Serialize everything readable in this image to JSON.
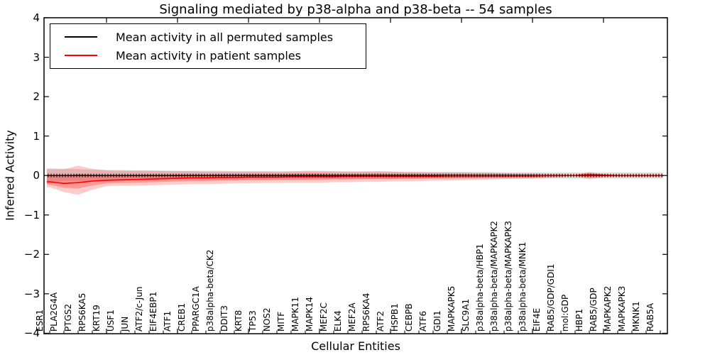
{
  "title": "Signaling mediated by p38-alpha and p38-beta -- 54 samples",
  "axes": {
    "xlabel": "Cellular Entities",
    "ylabel": "Inferred Activity",
    "ytick_labels": [
      "4",
      "3",
      "2",
      "1",
      "0",
      "−1",
      "−2",
      "−3",
      "−4"
    ],
    "ytick_values": [
      4,
      3,
      2,
      1,
      0,
      -1,
      -2,
      -3,
      -4
    ]
  },
  "legend": {
    "items": [
      {
        "label": "Mean activity in all permuted samples",
        "color": "#000000"
      },
      {
        "label": "Mean activity in patient samples",
        "color": "#ff0000"
      }
    ]
  },
  "chart_data": {
    "type": "line",
    "title": "Signaling mediated by p38-alpha and p38-beta -- 54 samples",
    "xlabel": "Cellular Entities",
    "ylabel": "Inferred Activity",
    "ylim": [
      -4,
      4
    ],
    "grid": false,
    "legend_position": "upper left",
    "categories": [
      "ESR1",
      "PLA2G4A",
      "PTGS2",
      "RPS6KA5",
      "KRT19",
      "USF1",
      "JUN",
      "ATF2/c-Jun",
      "EIF4EBP1",
      "ATF1",
      "CREB1",
      "PPARGC1A",
      "p38alpha-beta/CK2",
      "DDIT3",
      "KRT8",
      "TP53",
      "NOS2",
      "MITF",
      "MAPK11",
      "MAPK14",
      "MEF2C",
      "ELK4",
      "MEF2A",
      "RPS6KA4",
      "ATF2",
      "HSPB1",
      "CEBPB",
      "ATF6",
      "GDI1",
      "MAPKAPK5",
      "SLC9A1",
      "p38alpha-beta/HBP1",
      "p38alpha-beta/MAPKAPK2",
      "p38alpha-beta/MAPKAPK3",
      "p38alpha-beta/MNK1",
      "EIF4E",
      "RAB5/GDP/GDI1",
      "mol:GDP",
      "HBP1",
      "RAB5/GDP",
      "MAPKAPK2",
      "MAPKAPK3",
      "MKNK1",
      "RAB5A"
    ],
    "series": [
      {
        "name": "Mean activity in all permuted samples",
        "color": "#000000",
        "marker": "+",
        "values": [
          0,
          0,
          0,
          0,
          0,
          0,
          0,
          0,
          0,
          0,
          0,
          0,
          0,
          0,
          0,
          0,
          0,
          0,
          0,
          0,
          0,
          0,
          0,
          0,
          0,
          0,
          0,
          0,
          0,
          0,
          0,
          0,
          0,
          0,
          0,
          0,
          0,
          0,
          0,
          0,
          0,
          0,
          0,
          0
        ]
      },
      {
        "name": "Mean activity in patient samples",
        "color": "#ff0000",
        "values": [
          -0.16,
          -0.2,
          -0.18,
          -0.14,
          -0.12,
          -0.11,
          -0.1,
          -0.09,
          -0.08,
          -0.07,
          -0.06,
          -0.06,
          -0.05,
          -0.05,
          -0.04,
          -0.04,
          -0.04,
          -0.03,
          -0.03,
          -0.03,
          -0.03,
          -0.02,
          -0.02,
          -0.02,
          -0.02,
          -0.02,
          -0.02,
          -0.02,
          -0.01,
          -0.01,
          -0.01,
          -0.01,
          -0.01,
          -0.01,
          -0.01,
          0,
          0,
          0,
          0.02,
          0.01,
          0,
          0,
          0,
          0
        ]
      }
    ],
    "bands": [
      {
        "name": "permuted-sample-range",
        "color": "rgba(0,0,0,0.12)",
        "hi": [
          0.18,
          0.17,
          0.16,
          0.15,
          0.14,
          0.14,
          0.13,
          0.13,
          0.13,
          0.12,
          0.12,
          0.12,
          0.12,
          0.11,
          0.11,
          0.11,
          0.11,
          0.11,
          0.1,
          0.1,
          0.1,
          0.1,
          0.1,
          0.1,
          0.1,
          0.09,
          0.09,
          0.09,
          0.09,
          0.09,
          0.09,
          0.09,
          0.08,
          0.08,
          0.08,
          0.08,
          0.08,
          0.08,
          0.08,
          0.08,
          0.08,
          0.08,
          0.08,
          0.08
        ],
        "lo": [
          -0.16,
          -0.15,
          -0.14,
          -0.14,
          -0.13,
          -0.13,
          -0.12,
          -0.12,
          -0.12,
          -0.11,
          -0.11,
          -0.11,
          -0.11,
          -0.1,
          -0.1,
          -0.1,
          -0.1,
          -0.1,
          -0.1,
          -0.09,
          -0.09,
          -0.09,
          -0.09,
          -0.09,
          -0.09,
          -0.09,
          -0.09,
          -0.08,
          -0.08,
          -0.08,
          -0.08,
          -0.08,
          -0.08,
          -0.08,
          -0.08,
          -0.08,
          -0.08,
          -0.08,
          -0.08,
          -0.08,
          -0.08,
          -0.08,
          -0.08,
          -0.08
        ]
      },
      {
        "name": "patient-sample-range-outer",
        "color": "rgba(255,0,0,0.20)",
        "hi": [
          0.16,
          0.16,
          0.25,
          0.17,
          0.13,
          0.12,
          0.12,
          0.12,
          0.11,
          0.11,
          0.11,
          0.1,
          0.1,
          0.1,
          0.1,
          0.1,
          0.09,
          0.1,
          0.12,
          0.12,
          0.11,
          0.1,
          0.1,
          0.11,
          0.1,
          0.09,
          0.09,
          0.08,
          0.08,
          0.08,
          0.07,
          0.07,
          0.06,
          0.05,
          0.05,
          0.04,
          0.03,
          0.01,
          0.09,
          0.03,
          0.02,
          0.02,
          0.02,
          0.02
        ],
        "lo": [
          -0.3,
          -0.42,
          -0.49,
          -0.36,
          -0.27,
          -0.26,
          -0.26,
          -0.25,
          -0.24,
          -0.23,
          -0.22,
          -0.22,
          -0.21,
          -0.2,
          -0.2,
          -0.19,
          -0.19,
          -0.18,
          -0.18,
          -0.18,
          -0.17,
          -0.17,
          -0.16,
          -0.16,
          -0.15,
          -0.15,
          -0.14,
          -0.13,
          -0.13,
          -0.12,
          -0.11,
          -0.1,
          -0.09,
          -0.08,
          -0.07,
          -0.06,
          -0.04,
          -0.01,
          -0.09,
          -0.04,
          -0.03,
          -0.03,
          -0.03,
          -0.03
        ]
      },
      {
        "name": "patient-sample-range-inner",
        "color": "rgba(255,0,0,0.26)",
        "hi": [
          0.0,
          -0.02,
          0.04,
          0.02,
          0.01,
          0.01,
          0.01,
          0.02,
          0.02,
          0.02,
          0.03,
          0.02,
          0.03,
          0.03,
          0.03,
          0.03,
          0.03,
          0.04,
          0.05,
          0.05,
          0.04,
          0.04,
          0.04,
          0.05,
          0.04,
          0.04,
          0.04,
          0.03,
          0.04,
          0.04,
          0.03,
          0.03,
          0.03,
          0.02,
          0.02,
          0.02,
          0.02,
          0.01,
          0.06,
          0.02,
          0.01,
          0.01,
          0.01,
          0.01
        ],
        "lo": [
          -0.23,
          -0.31,
          -0.33,
          -0.25,
          -0.2,
          -0.19,
          -0.18,
          -0.17,
          -0.16,
          -0.15,
          -0.14,
          -0.14,
          -0.13,
          -0.13,
          -0.12,
          -0.12,
          -0.11,
          -0.11,
          -0.11,
          -0.11,
          -0.1,
          -0.1,
          -0.09,
          -0.09,
          -0.09,
          -0.08,
          -0.08,
          -0.07,
          -0.07,
          -0.06,
          -0.06,
          -0.05,
          -0.05,
          -0.04,
          -0.04,
          -0.03,
          -0.02,
          -0.01,
          -0.04,
          -0.02,
          -0.02,
          -0.02,
          -0.02,
          -0.02
        ]
      }
    ]
  }
}
